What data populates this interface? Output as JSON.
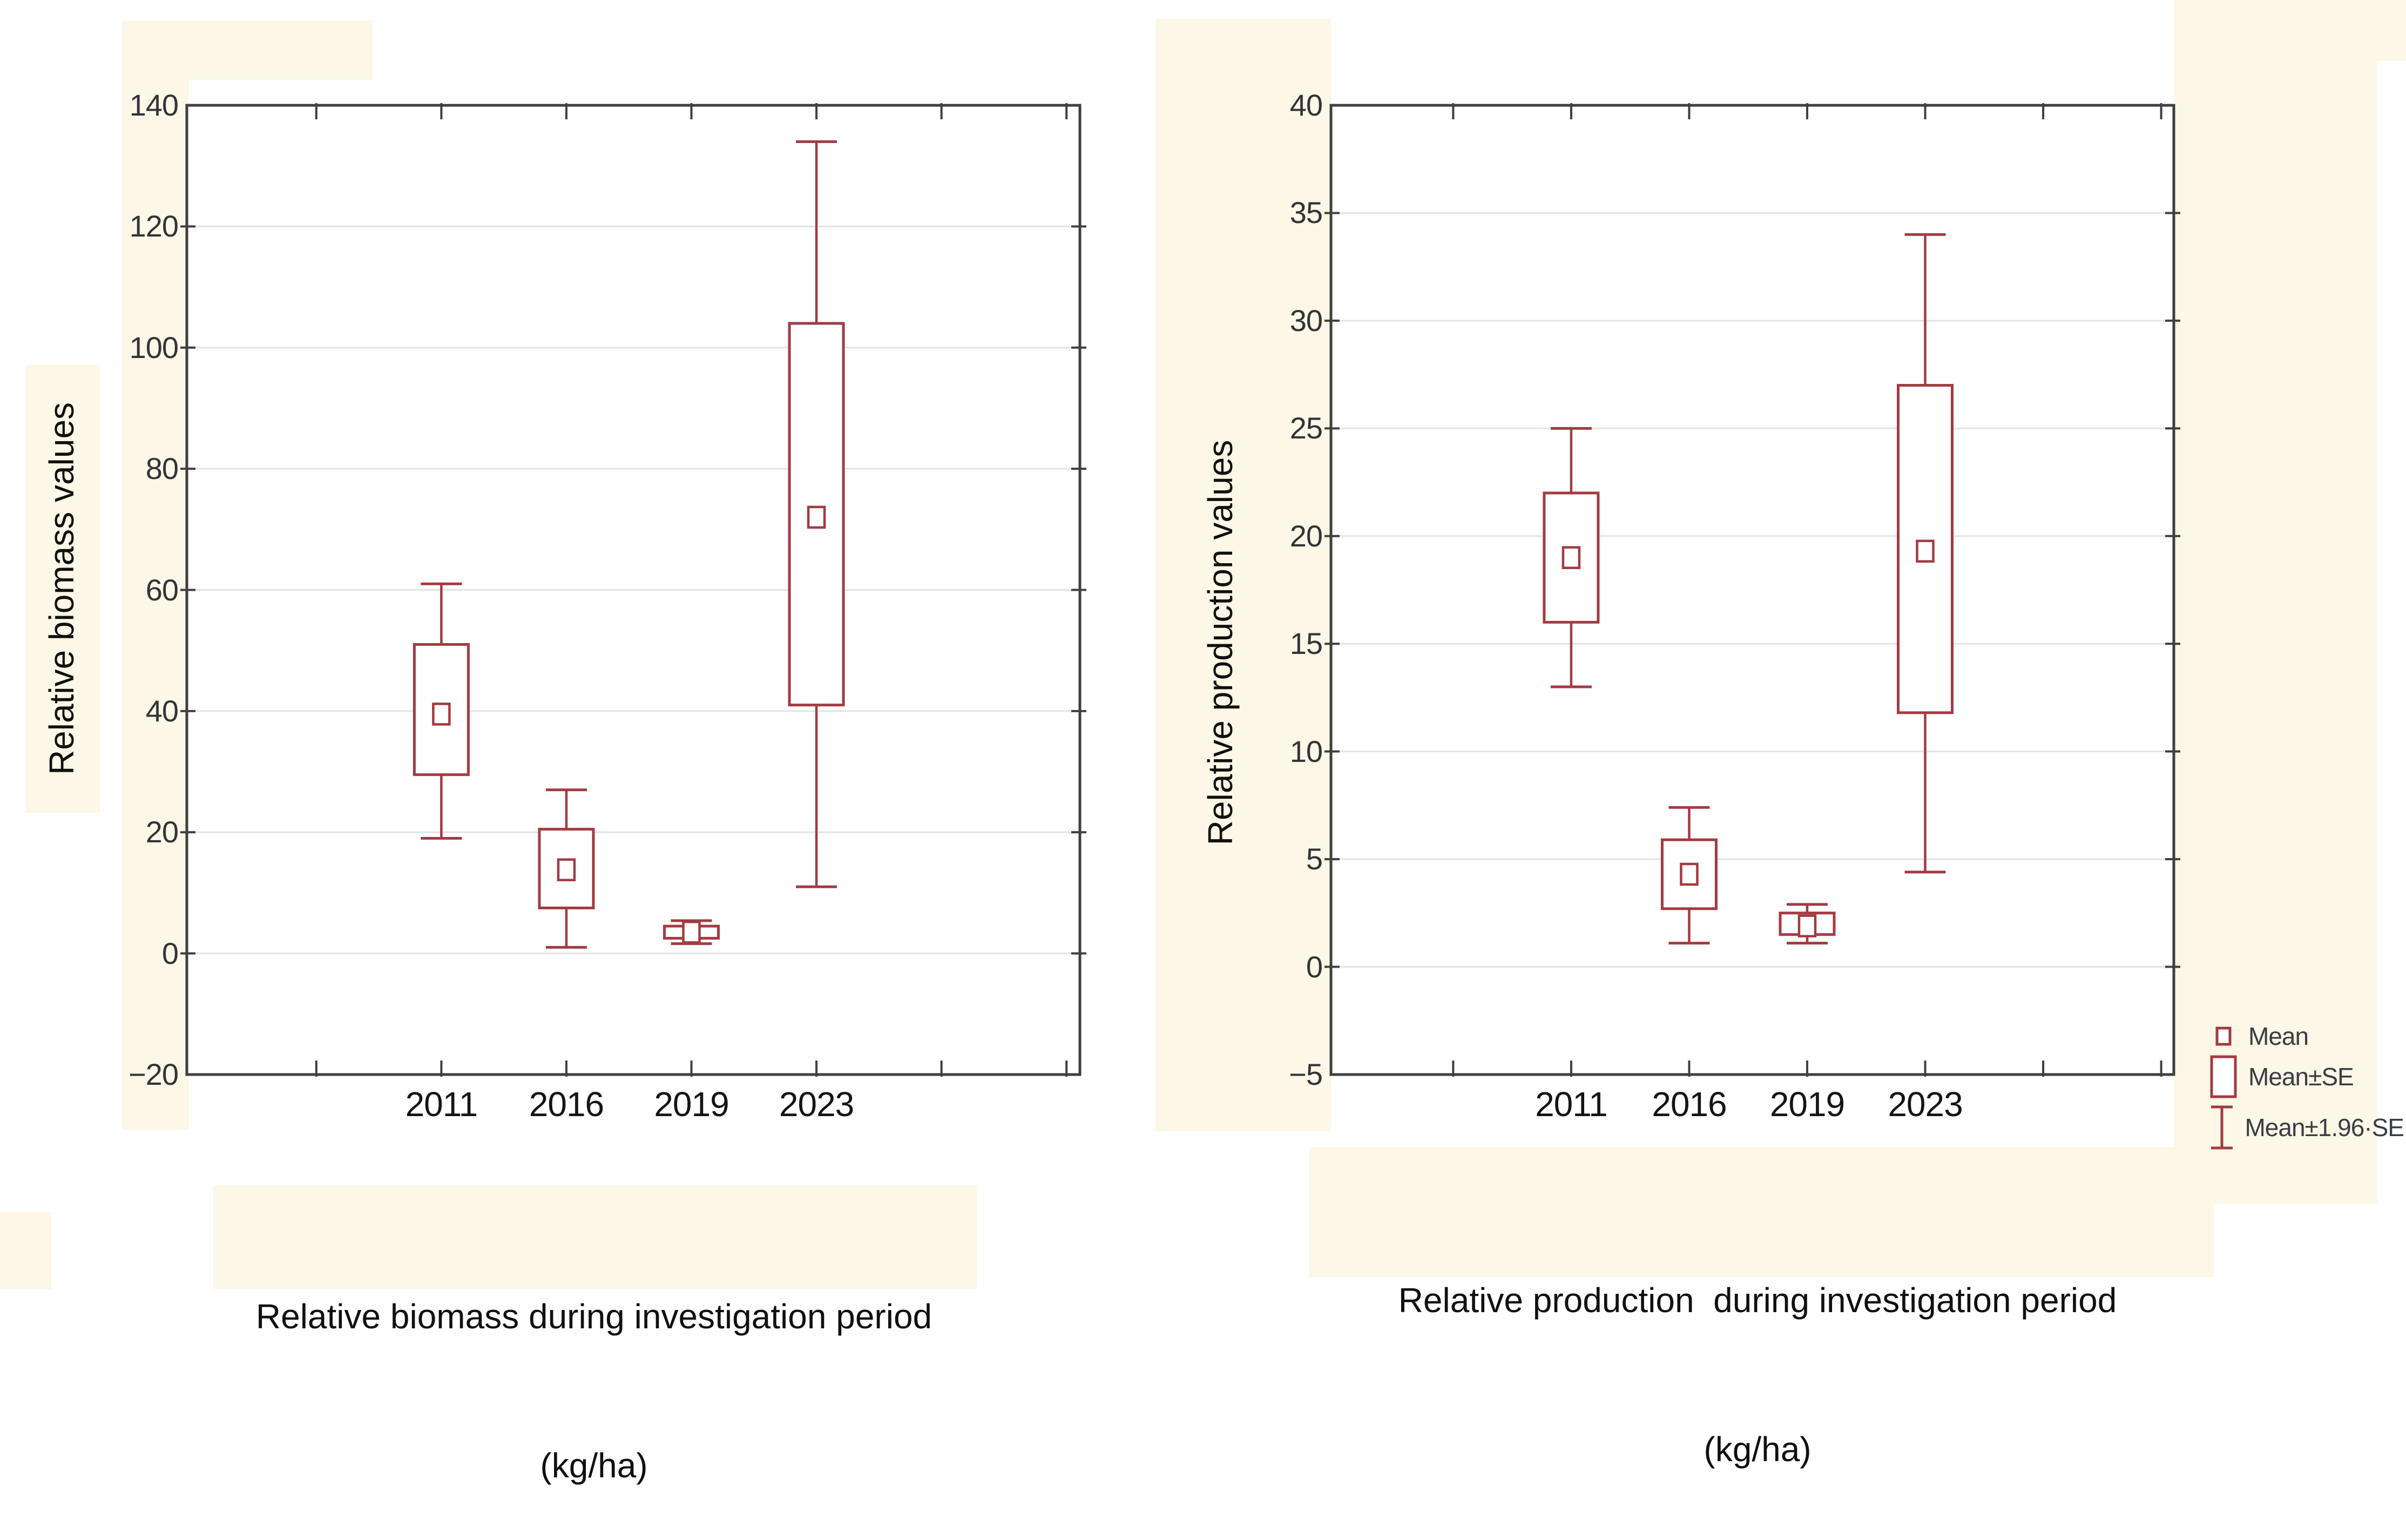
{
  "figure": {
    "description": "Two box-whisker charts (Mean, Mean±SE, Mean±1.96·SE) of relative biomass and relative production by year"
  },
  "colors": {
    "box_outline": "#a23b42",
    "frame": "#3f3f3f",
    "gridline": "#e3e3e3",
    "plot_bg": "#ffffff",
    "page_bg": "#ffffff",
    "highlight_band": "#fcf7e6",
    "tick_label": "#32343a",
    "axis_title": "#101010",
    "legend_label": "#3b3d45"
  },
  "legend": {
    "items": [
      {
        "icon": "mean-marker",
        "label": "Mean"
      },
      {
        "icon": "se-box",
        "label": "Mean±SE"
      },
      {
        "icon": "ci-whisker",
        "label": "Mean±1.96·SE"
      }
    ]
  },
  "chart_data": [
    {
      "type": "box",
      "title": "Relative biomass during investigation period",
      "subtitle": "(kg/ha)",
      "ylabel": "Relative biomass values",
      "xlabel": "",
      "categories": [
        "2011",
        "2016",
        "2019",
        "2023"
      ],
      "ylim": [
        -20,
        140
      ],
      "ytick_step": 20,
      "grid": "horizontal",
      "legend_position": "bottom-right",
      "series": [
        {
          "category": "2011",
          "mean": 39.5,
          "se_low": 29.5,
          "se_high": 51,
          "ci_low": 19,
          "ci_high": 61
        },
        {
          "category": "2016",
          "mean": 13.8,
          "se_low": 7.5,
          "se_high": 20.5,
          "ci_low": 1,
          "ci_high": 27
        },
        {
          "category": "2019",
          "mean": 3.5,
          "se_low": 2.5,
          "se_high": 4.5,
          "ci_low": 1.6,
          "ci_high": 5.4
        },
        {
          "category": "2023",
          "mean": 72,
          "se_low": 41,
          "se_high": 104,
          "ci_low": 11,
          "ci_high": 134
        }
      ]
    },
    {
      "type": "box",
      "title": "Relative production  during investigation period",
      "subtitle": "(kg/ha)",
      "ylabel": "Relative production values",
      "xlabel": "",
      "categories": [
        "2011",
        "2016",
        "2019",
        "2023"
      ],
      "ylim": [
        -5,
        40
      ],
      "ytick_step": 5,
      "grid": "horizontal",
      "legend_position": "bottom-right",
      "series": [
        {
          "category": "2011",
          "mean": 19,
          "se_low": 16,
          "se_high": 22,
          "ci_low": 13,
          "ci_high": 25
        },
        {
          "category": "2016",
          "mean": 4.3,
          "se_low": 2.7,
          "se_high": 5.9,
          "ci_low": 1.1,
          "ci_high": 7.4
        },
        {
          "category": "2019",
          "mean": 1.9,
          "se_low": 1.5,
          "se_high": 2.5,
          "ci_low": 1.1,
          "ci_high": 2.9
        },
        {
          "category": "2023",
          "mean": 19.3,
          "se_low": 11.8,
          "se_high": 27,
          "ci_low": 4.4,
          "ci_high": 34
        }
      ]
    }
  ]
}
